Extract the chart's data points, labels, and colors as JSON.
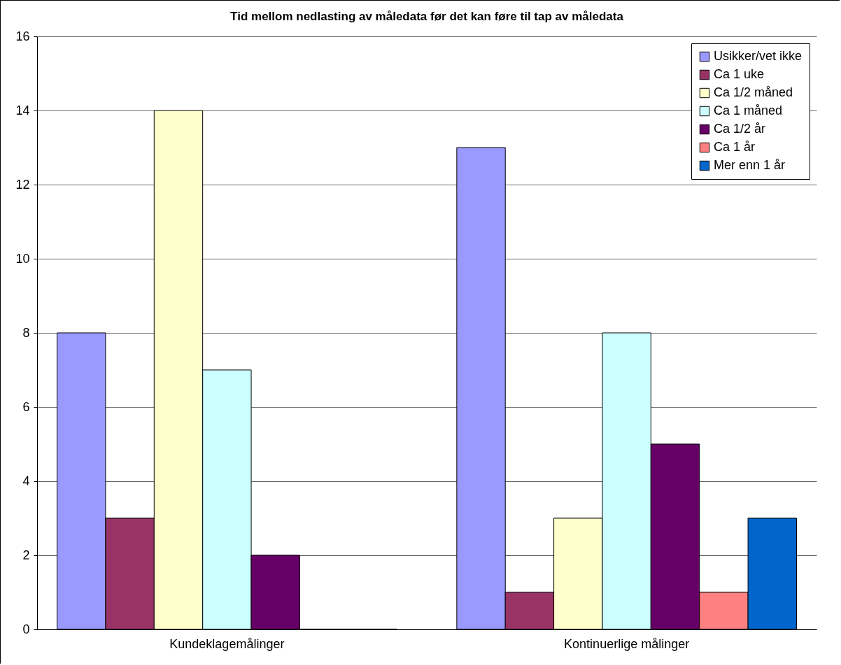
{
  "chart_data": {
    "type": "bar",
    "title": "Tid mellom nedlasting av måledata før det kan føre til tap av måledata",
    "categories": [
      "Kundeklagemålinger",
      "Kontinuerlige målinger"
    ],
    "series": [
      {
        "name": "Usikker/vet ikke",
        "color": "#9999ff",
        "values": [
          8,
          13
        ]
      },
      {
        "name": "Ca 1 uke",
        "color": "#993366",
        "values": [
          3,
          1
        ]
      },
      {
        "name": "Ca 1/2 måned",
        "color": "#ffffcc",
        "values": [
          14,
          3
        ]
      },
      {
        "name": "Ca 1 måned",
        "color": "#ccffff",
        "values": [
          7,
          8
        ]
      },
      {
        "name": "Ca 1/2 år",
        "color": "#660066",
        "values": [
          2,
          5
        ]
      },
      {
        "name": "Ca 1 år",
        "color": "#ff8080",
        "values": [
          0,
          1
        ]
      },
      {
        "name": "Mer enn 1 år",
        "color": "#0066cc",
        "values": [
          0,
          3
        ]
      }
    ],
    "ylim": [
      0,
      16
    ],
    "yticks": [
      0,
      2,
      4,
      6,
      8,
      10,
      12,
      14,
      16
    ],
    "grid": "y",
    "legend": "top right"
  }
}
